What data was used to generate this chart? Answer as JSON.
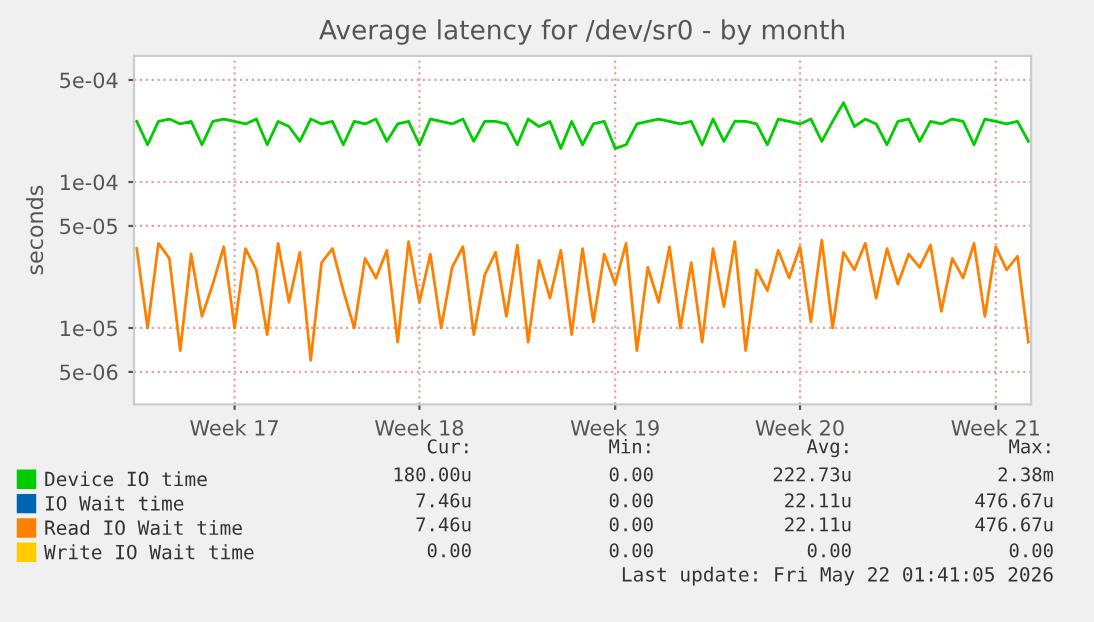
{
  "chart_data": {
    "type": "line",
    "title": "Average latency for /dev/sr0 - by month",
    "ylabel": "seconds",
    "log": "y",
    "grid": true,
    "legend": "bottom",
    "marker": "none",
    "line_style": "solid",
    "categories": [
      null,
      null,
      null,
      null,
      null,
      null,
      null,
      null,
      null,
      "Week 17",
      null,
      null,
      null,
      null,
      null,
      null,
      null,
      null,
      null,
      null,
      null,
      null,
      null,
      null,
      null,
      null,
      "Week 18",
      null,
      null,
      null,
      null,
      null,
      null,
      null,
      null,
      null,
      null,
      null,
      null,
      null,
      null,
      null,
      null,
      null,
      "Week 19",
      null,
      null,
      null,
      null,
      null,
      null,
      null,
      null,
      null,
      null,
      null,
      null,
      null,
      null,
      null,
      null,
      "Week 20",
      null,
      null,
      null,
      null,
      null,
      null,
      null,
      null,
      null,
      null,
      null,
      null,
      null,
      null,
      null,
      null,
      null,
      "Week 21",
      null,
      null,
      null
    ],
    "ylim": [
      3e-06,
      0.00073
    ],
    "yticks": [
      {
        "value": 5e-06,
        "label": "5e-06"
      },
      {
        "value": 1e-05,
        "label": "1e-05"
      },
      {
        "value": 5e-05,
        "label": "5e-05"
      },
      {
        "value": 0.0001,
        "label": "1e-04"
      },
      {
        "value": 0.0005,
        "label": "5e-04"
      }
    ],
    "series": [
      {
        "name": "Device IO time",
        "color": "#00cc00",
        "values": [
          0.00026,
          0.00018,
          0.00026,
          0.00027,
          0.00025,
          0.00026,
          0.00018,
          0.00026,
          0.00027,
          0.00026,
          0.00025,
          0.00027,
          0.00018,
          0.00026,
          0.00024,
          0.00019,
          0.00027,
          0.00025,
          0.00026,
          0.00018,
          0.00026,
          0.00025,
          0.00027,
          0.00019,
          0.00025,
          0.00026,
          0.00018,
          0.00027,
          0.00026,
          0.00025,
          0.00027,
          0.00019,
          0.00026,
          0.00026,
          0.00025,
          0.00018,
          0.00027,
          0.00024,
          0.00026,
          0.00017,
          0.00026,
          0.00018,
          0.00025,
          0.00026,
          0.00017,
          0.00018,
          0.00025,
          0.00026,
          0.00027,
          0.00026,
          0.00025,
          0.00026,
          0.00018,
          0.00027,
          0.00019,
          0.00026,
          0.00026,
          0.00025,
          0.00018,
          0.00027,
          0.00026,
          0.00025,
          0.00027,
          0.00019,
          0.00026,
          0.00035,
          0.00024,
          0.00027,
          0.00025,
          0.00018,
          0.00026,
          0.00027,
          0.00019,
          0.00026,
          0.00025,
          0.00027,
          0.00026,
          0.00018,
          0.00027,
          0.00026,
          0.00025,
          0.00026,
          0.00019
        ]
      },
      {
        "name": "IO Wait time",
        "color": "#0066b3",
        "values": [
          null,
          null,
          null,
          null,
          null,
          null,
          null,
          null,
          null,
          null,
          null,
          null,
          null,
          null,
          null,
          null,
          null,
          null,
          null,
          null,
          null,
          null,
          null,
          null,
          null,
          null,
          null,
          null,
          null,
          null,
          null,
          null,
          null,
          null,
          null,
          null,
          null,
          null,
          null,
          null,
          null,
          null,
          null,
          null,
          null,
          null,
          null,
          null,
          null,
          null,
          null,
          null,
          null,
          null,
          null,
          null,
          null,
          null,
          null,
          null,
          null,
          null,
          null,
          null,
          null,
          null,
          null,
          null,
          null,
          null,
          null,
          null,
          null,
          null,
          null,
          null,
          null,
          null,
          null,
          null,
          null,
          null,
          null
        ]
      },
      {
        "name": "Read IO Wait time",
        "color": "#ff8000",
        "values": [
          3.5e-05,
          1e-05,
          3.8e-05,
          3e-05,
          7e-06,
          3.2e-05,
          1.2e-05,
          2e-05,
          3.6e-05,
          1e-05,
          3.5e-05,
          2.5e-05,
          9e-06,
          3.8e-05,
          1.5e-05,
          3.3e-05,
          6e-06,
          2.8e-05,
          3.5e-05,
          1.8e-05,
          1e-05,
          3e-05,
          2.2e-05,
          3.4e-05,
          8e-06,
          3.9e-05,
          1.5e-05,
          3.2e-05,
          1e-05,
          2.6e-05,
          3.6e-05,
          9e-06,
          2.3e-05,
          3.3e-05,
          1.2e-05,
          3.7e-05,
          8e-06,
          2.9e-05,
          1.6e-05,
          3.4e-05,
          9e-06,
          3.5e-05,
          1.1e-05,
          3.2e-05,
          2e-05,
          3.8e-05,
          7e-06,
          2.6e-05,
          1.5e-05,
          3.6e-05,
          1e-05,
          2.8e-05,
          8e-06,
          3.5e-05,
          1.4e-05,
          3.9e-05,
          7e-06,
          2.5e-05,
          1.8e-05,
          3.4e-05,
          2.2e-05,
          3.6e-05,
          1.1e-05,
          4e-05,
          1e-05,
          3.3e-05,
          2.5e-05,
          3.8e-05,
          1.6e-05,
          3.5e-05,
          2e-05,
          3.2e-05,
          2.6e-05,
          3.7e-05,
          1.3e-05,
          3e-05,
          2.2e-05,
          3.8e-05,
          1.2e-05,
          3.6e-05,
          2.5e-05,
          3.1e-05,
          8e-06
        ]
      },
      {
        "name": "Write IO Wait time",
        "color": "#ffcc00",
        "values": [
          null,
          null,
          null,
          null,
          null,
          null,
          null,
          null,
          null,
          null,
          null,
          null,
          null,
          null,
          null,
          null,
          null,
          null,
          null,
          null,
          null,
          null,
          null,
          null,
          null,
          null,
          null,
          null,
          null,
          null,
          null,
          null,
          null,
          null,
          null,
          null,
          null,
          null,
          null,
          null,
          null,
          null,
          null,
          null,
          null,
          null,
          null,
          null,
          null,
          null,
          null,
          null,
          null,
          null,
          null,
          null,
          null,
          null,
          null,
          null,
          null,
          null,
          null,
          null,
          null,
          null,
          null,
          null,
          null,
          null,
          null,
          null,
          null,
          null,
          null,
          null,
          null,
          null,
          null,
          null,
          null,
          null,
          null
        ]
      }
    ],
    "annotations": [
      "Cur:",
      "Min:",
      "Avg:",
      "Max:",
      "180.00u",
      "0.00",
      "222.73u",
      "2.38m",
      "7.46u",
      "0.00",
      "22.11u",
      "476.67u",
      "7.46u",
      "0.00",
      "22.11u",
      "476.67u",
      "0.00",
      "0.00",
      "0.00",
      "0.00",
      "Last update: Fri May 22 01:41:05 2026"
    ]
  }
}
